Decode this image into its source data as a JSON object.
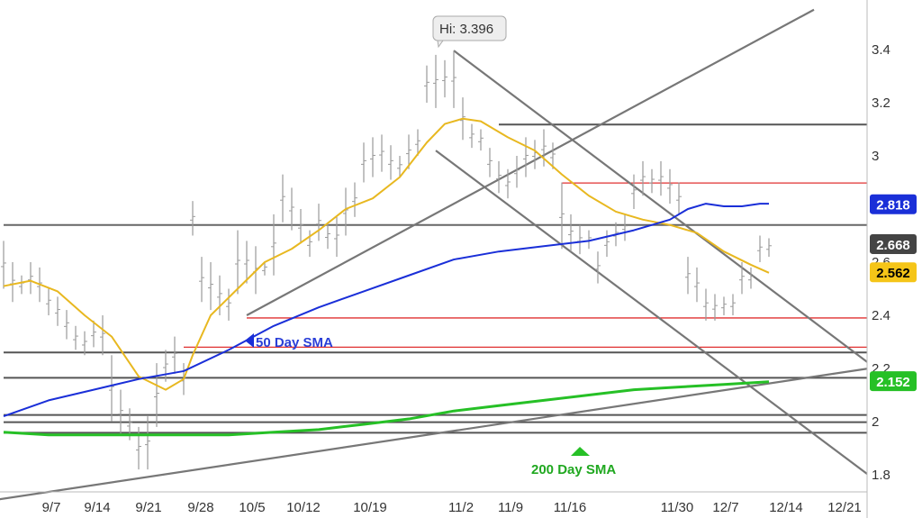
{
  "chart_data": {
    "type": "line",
    "title": "",
    "xlabel": "",
    "ylabel": "",
    "ylim": [
      1.72,
      3.55
    ],
    "x_tick_labels": [
      "9/7",
      "9/14",
      "9/21",
      "9/28",
      "10/5",
      "10/12",
      "10/19",
      "11/2",
      "11/9",
      "11/16",
      "11/30",
      "12/7",
      "12/14",
      "12/21"
    ],
    "y_tick_labels": [
      "1.8",
      "2",
      "2.2",
      "2.4",
      "2.6",
      "2.8",
      "3",
      "3.2",
      "3.4"
    ],
    "y_tick_values": [
      1.8,
      2.0,
      2.2,
      2.4,
      2.6,
      2.8,
      3.0,
      3.2,
      3.4
    ],
    "price_bars": [
      {
        "x": 0,
        "h": 2.68,
        "l": 2.5
      },
      {
        "x": 1,
        "h": 2.6,
        "l": 2.45
      },
      {
        "x": 2,
        "h": 2.55,
        "l": 2.48
      },
      {
        "x": 3,
        "h": 2.6,
        "l": 2.48
      },
      {
        "x": 4,
        "h": 2.58,
        "l": 2.45
      },
      {
        "x": 5,
        "h": 2.5,
        "l": 2.4
      },
      {
        "x": 6,
        "h": 2.47,
        "l": 2.36
      },
      {
        "x": 7,
        "h": 2.42,
        "l": 2.31
      },
      {
        "x": 8,
        "h": 2.36,
        "l": 2.27
      },
      {
        "x": 9,
        "h": 2.34,
        "l": 2.25
      },
      {
        "x": 10,
        "h": 2.38,
        "l": 2.28
      },
      {
        "x": 11,
        "h": 2.4,
        "l": 2.25
      },
      {
        "x": 12,
        "h": 2.25,
        "l": 2.0
      },
      {
        "x": 13,
        "h": 2.12,
        "l": 1.95
      },
      {
        "x": 14,
        "h": 2.05,
        "l": 1.93
      },
      {
        "x": 15,
        "h": 1.98,
        "l": 1.82
      },
      {
        "x": 16,
        "h": 2.02,
        "l": 1.82
      },
      {
        "x": 17,
        "h": 2.22,
        "l": 1.98
      },
      {
        "x": 18,
        "h": 2.27,
        "l": 2.15
      },
      {
        "x": 19,
        "h": 2.32,
        "l": 2.18
      },
      {
        "x": 20,
        "h": 2.22,
        "l": 2.1
      },
      {
        "x": 21,
        "h": 2.83,
        "l": 2.7
      },
      {
        "x": 22,
        "h": 2.62,
        "l": 2.45
      },
      {
        "x": 23,
        "h": 2.6,
        "l": 2.42
      },
      {
        "x": 24,
        "h": 2.55,
        "l": 2.4
      },
      {
        "x": 25,
        "h": 2.5,
        "l": 2.38
      },
      {
        "x": 26,
        "h": 2.72,
        "l": 2.48
      },
      {
        "x": 27,
        "h": 2.68,
        "l": 2.52
      },
      {
        "x": 28,
        "h": 2.66,
        "l": 2.48
      },
      {
        "x": 29,
        "h": 2.6,
        "l": 2.55
      },
      {
        "x": 30,
        "h": 2.78,
        "l": 2.55
      },
      {
        "x": 31,
        "h": 2.93,
        "l": 2.75
      },
      {
        "x": 32,
        "h": 2.88,
        "l": 2.72
      },
      {
        "x": 33,
        "h": 2.8,
        "l": 2.67
      },
      {
        "x": 34,
        "h": 2.72,
        "l": 2.62
      },
      {
        "x": 35,
        "h": 2.82,
        "l": 2.68
      },
      {
        "x": 36,
        "h": 2.75,
        "l": 2.65
      },
      {
        "x": 37,
        "h": 2.77,
        "l": 2.62
      },
      {
        "x": 38,
        "h": 2.88,
        "l": 2.7
      },
      {
        "x": 39,
        "h": 2.9,
        "l": 2.77
      },
      {
        "x": 40,
        "h": 3.05,
        "l": 2.9
      },
      {
        "x": 41,
        "h": 3.07,
        "l": 2.92
      },
      {
        "x": 42,
        "h": 3.08,
        "l": 2.94
      },
      {
        "x": 43,
        "h": 3.04,
        "l": 2.91
      },
      {
        "x": 44,
        "h": 3.0,
        "l": 2.92
      },
      {
        "x": 45,
        "h": 3.08,
        "l": 2.95
      },
      {
        "x": 46,
        "h": 3.1,
        "l": 3.0
      },
      {
        "x": 47,
        "h": 3.34,
        "l": 3.2
      },
      {
        "x": 48,
        "h": 3.38,
        "l": 3.18
      },
      {
        "x": 49,
        "h": 3.36,
        "l": 3.22
      },
      {
        "x": 50,
        "h": 3.396,
        "l": 3.18
      },
      {
        "x": 51,
        "h": 3.22,
        "l": 3.06
      },
      {
        "x": 52,
        "h": 3.12,
        "l": 3.03
      },
      {
        "x": 53,
        "h": 3.1,
        "l": 3.02
      },
      {
        "x": 54,
        "h": 3.03,
        "l": 2.92
      },
      {
        "x": 55,
        "h": 2.98,
        "l": 2.86
      },
      {
        "x": 56,
        "h": 2.95,
        "l": 2.84
      },
      {
        "x": 57,
        "h": 3.0,
        "l": 2.88
      },
      {
        "x": 58,
        "h": 3.07,
        "l": 2.92
      },
      {
        "x": 59,
        "h": 3.06,
        "l": 2.95
      },
      {
        "x": 60,
        "h": 3.1,
        "l": 2.96
      },
      {
        "x": 61,
        "h": 3.05,
        "l": 2.95
      },
      {
        "x": 62,
        "h": 2.9,
        "l": 2.65
      },
      {
        "x": 63,
        "h": 2.78,
        "l": 2.64
      },
      {
        "x": 64,
        "h": 2.74,
        "l": 2.63
      },
      {
        "x": 65,
        "h": 2.72,
        "l": 2.65
      },
      {
        "x": 66,
        "h": 2.64,
        "l": 2.52
      },
      {
        "x": 67,
        "h": 2.72,
        "l": 2.62
      },
      {
        "x": 68,
        "h": 2.75,
        "l": 2.66
      },
      {
        "x": 69,
        "h": 2.78,
        "l": 2.68
      },
      {
        "x": 70,
        "h": 2.93,
        "l": 2.8
      },
      {
        "x": 71,
        "h": 2.98,
        "l": 2.85
      },
      {
        "x": 72,
        "h": 2.95,
        "l": 2.86
      },
      {
        "x": 73,
        "h": 2.98,
        "l": 2.85
      },
      {
        "x": 74,
        "h": 2.95,
        "l": 2.82
      },
      {
        "x": 75,
        "h": 2.9,
        "l": 2.78
      },
      {
        "x": 76,
        "h": 2.62,
        "l": 2.48
      },
      {
        "x": 77,
        "h": 2.58,
        "l": 2.45
      },
      {
        "x": 78,
        "h": 2.5,
        "l": 2.38
      },
      {
        "x": 79,
        "h": 2.48,
        "l": 2.38
      },
      {
        "x": 80,
        "h": 2.47,
        "l": 2.4
      },
      {
        "x": 81,
        "h": 2.48,
        "l": 2.4
      },
      {
        "x": 82,
        "h": 2.6,
        "l": 2.48
      },
      {
        "x": 83,
        "h": 2.58,
        "l": 2.5
      },
      {
        "x": 84,
        "h": 2.7,
        "l": 2.6
      },
      {
        "x": 85,
        "h": 2.69,
        "l": 2.62
      }
    ],
    "series": [
      {
        "name": "",
        "color": "#e8b820",
        "x": [
          0,
          3,
          6,
          9,
          12,
          15,
          18,
          20,
          21,
          23,
          26,
          29,
          32,
          35,
          38,
          41,
          44,
          47,
          49,
          51,
          53,
          56,
          59,
          62,
          65,
          68,
          71,
          74,
          77,
          80,
          83,
          85
        ],
        "values": [
          2.51,
          2.53,
          2.49,
          2.4,
          2.32,
          2.17,
          2.12,
          2.16,
          2.25,
          2.4,
          2.5,
          2.6,
          2.65,
          2.72,
          2.8,
          2.84,
          2.92,
          3.05,
          3.12,
          3.14,
          3.13,
          3.07,
          3.02,
          2.93,
          2.85,
          2.79,
          2.76,
          2.74,
          2.71,
          2.64,
          2.59,
          2.56
        ]
      },
      {
        "name": "50 Day SMA",
        "color": "#1a2fd8",
        "x": [
          0,
          5,
          10,
          15,
          20,
          25,
          30,
          35,
          40,
          45,
          50,
          55,
          60,
          65,
          70,
          74,
          76,
          78,
          80,
          82,
          84,
          85
        ],
        "values": [
          2.02,
          2.08,
          2.12,
          2.16,
          2.19,
          2.27,
          2.36,
          2.43,
          2.49,
          2.55,
          2.61,
          2.64,
          2.66,
          2.68,
          2.72,
          2.76,
          2.8,
          2.82,
          2.81,
          2.81,
          2.82,
          2.82
        ]
      },
      {
        "name": "200 Day SMA",
        "color": "#26c026",
        "x": [
          0,
          5,
          10,
          15,
          20,
          25,
          30,
          35,
          40,
          45,
          50,
          55,
          60,
          65,
          70,
          75,
          80,
          85
        ],
        "values": [
          1.96,
          1.95,
          1.95,
          1.95,
          1.95,
          1.95,
          1.96,
          1.97,
          1.99,
          2.01,
          2.04,
          2.06,
          2.08,
          2.1,
          2.12,
          2.13,
          2.14,
          2.15
        ]
      }
    ],
    "horizontal_lines": [
      {
        "y": 3.118,
        "x_start": 55,
        "color": "#555555"
      },
      {
        "y": 2.898,
        "x_start": 62,
        "color": "#e03030"
      },
      {
        "y": 2.74,
        "x_start": 0,
        "color": "#666666"
      },
      {
        "y": 2.39,
        "x_start": 27,
        "color": "#e03030"
      },
      {
        "y": 2.28,
        "x_start": 20,
        "color": "#e03030"
      },
      {
        "y": 2.26,
        "x_start": 0,
        "color": "#555555"
      },
      {
        "y": 2.165,
        "x_start": 0,
        "color": "#555555"
      },
      {
        "y": 2.025,
        "x_start": 0,
        "color": "#555555"
      },
      {
        "y": 1.998,
        "x_start": 0,
        "color": "#555555"
      },
      {
        "y": 1.958,
        "x_start": 0,
        "color": "#555555"
      }
    ],
    "trend_lines": [
      {
        "x1": 27,
        "y1": 2.4,
        "x2": 90,
        "y2": 3.55,
        "color": "#777777"
      },
      {
        "x1": 50,
        "y1": 3.396,
        "x2": 100,
        "y2": 2.12,
        "color": "#777777"
      },
      {
        "x1": 48,
        "y1": 3.02,
        "x2": 98,
        "y2": 1.75,
        "color": "#777777"
      },
      {
        "x1": -2,
        "y1": 1.7,
        "x2": 100,
        "y2": 2.22,
        "color": "#777777"
      }
    ],
    "price_labels": [
      {
        "text": "2.818",
        "y": 2.818,
        "bg": "#1a2fd8",
        "fg": "#ffffff"
      },
      {
        "text": "2.668",
        "y": 2.668,
        "bg": "#444444",
        "fg": "#ffffff"
      },
      {
        "text": "2.562",
        "y": 2.562,
        "bg": "#f5c518",
        "fg": "#000000"
      },
      {
        "text": "2.152",
        "y": 2.152,
        "bg": "#26c026",
        "fg": "#ffffff"
      }
    ],
    "annotations": {
      "hi_label": "Hi: 3.396",
      "sma50_label": "50 Day SMA",
      "sma200_label": "200 Day SMA"
    },
    "legend": "none",
    "grid": false
  }
}
